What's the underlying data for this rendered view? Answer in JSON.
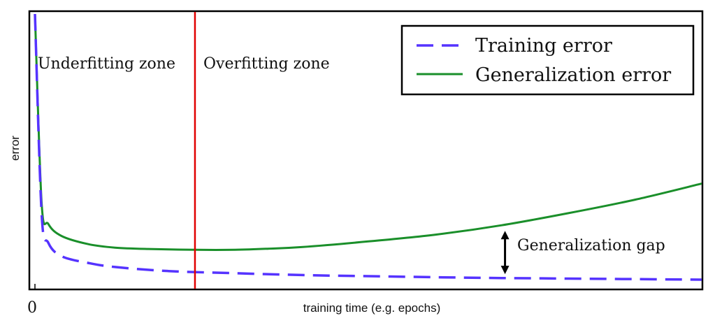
{
  "chart_data": {
    "type": "line",
    "xlabel": "training time (e.g. epochs)",
    "ylabel": "error",
    "x_tick_labels": [
      "0"
    ],
    "xlim": [
      0,
      1
    ],
    "ylim": [
      0,
      1
    ],
    "grid": false,
    "legend": {
      "placement": "top-right"
    },
    "series": [
      {
        "name": "Training error",
        "style": "dashed",
        "color": "#5533ff",
        "x": [
          0.0,
          0.01,
          0.02,
          0.04,
          0.08,
          0.12,
          0.2,
          0.3,
          0.4,
          0.5,
          0.6,
          0.7,
          0.8,
          0.9,
          1.0
        ],
        "y": [
          1.0,
          0.26,
          0.15,
          0.1,
          0.075,
          0.06,
          0.045,
          0.037,
          0.03,
          0.026,
          0.022,
          0.019,
          0.017,
          0.015,
          0.013
        ]
      },
      {
        "name": "Generalization error",
        "style": "solid",
        "color": "#1a8f2a",
        "x": [
          0.0,
          0.01,
          0.02,
          0.04,
          0.08,
          0.12,
          0.17,
          0.24,
          0.3,
          0.35,
          0.4,
          0.5,
          0.6,
          0.7,
          0.8,
          0.9,
          1.0
        ],
        "y": [
          1.0,
          0.3,
          0.22,
          0.175,
          0.145,
          0.132,
          0.127,
          0.124,
          0.124,
          0.128,
          0.134,
          0.155,
          0.18,
          0.215,
          0.26,
          0.31,
          0.37
        ]
      }
    ],
    "vertical_line": {
      "x": 0.24,
      "color": "#e00000"
    },
    "zone_labels": {
      "left": "Underfitting zone",
      "right": "Overfitting zone"
    },
    "gap_annotation": {
      "label": "Generalization gap",
      "x": 0.705,
      "y_top": 0.215,
      "y_bottom": 0.018
    }
  }
}
